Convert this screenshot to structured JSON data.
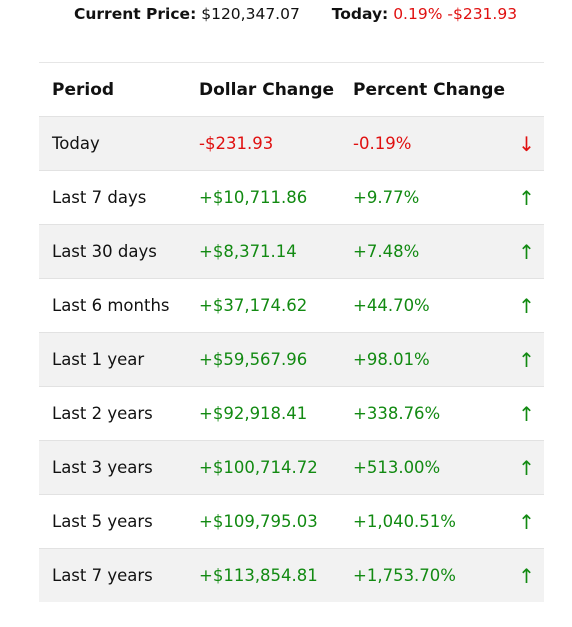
{
  "summary": {
    "current_label": "Current Price:",
    "current_value": "$120,347.07",
    "today_label": "Today:",
    "today_percent": "0.19%",
    "today_dollar": "-$231.93"
  },
  "table": {
    "headers": [
      "Period",
      "Dollar Change",
      "Percent Change",
      ""
    ],
    "rows": [
      {
        "period": "Today",
        "dollar": "-$231.93",
        "percent": "-0.19%",
        "arrow": "↓",
        "direction": "down"
      },
      {
        "period": "Last 7 days",
        "dollar": "+$10,711.86",
        "percent": "+9.77%",
        "arrow": "↑",
        "direction": "up"
      },
      {
        "period": "Last 30 days",
        "dollar": "+$8,371.14",
        "percent": "+7.48%",
        "arrow": "↑",
        "direction": "up"
      },
      {
        "period": "Last 6 months",
        "dollar": "+$37,174.62",
        "percent": "+44.70%",
        "arrow": "↑",
        "direction": "up"
      },
      {
        "period": "Last 1 year",
        "dollar": "+$59,567.96",
        "percent": "+98.01%",
        "arrow": "↑",
        "direction": "up"
      },
      {
        "period": "Last 2 years",
        "dollar": "+$92,918.41",
        "percent": "+338.76%",
        "arrow": "↑",
        "direction": "up"
      },
      {
        "period": "Last 3 years",
        "dollar": "+$100,714.72",
        "percent": "+513.00%",
        "arrow": "↑",
        "direction": "up"
      },
      {
        "period": "Last 5 years",
        "dollar": "+$109,795.03",
        "percent": "+1,040.51%",
        "arrow": "↑",
        "direction": "up"
      },
      {
        "period": "Last 7 years",
        "dollar": "+$113,854.81",
        "percent": "+1,753.70%",
        "arrow": "↑",
        "direction": "up"
      }
    ]
  },
  "colors": {
    "negative": "#e01010",
    "positive": "#128a12",
    "stripe": "#f2f2f2"
  }
}
